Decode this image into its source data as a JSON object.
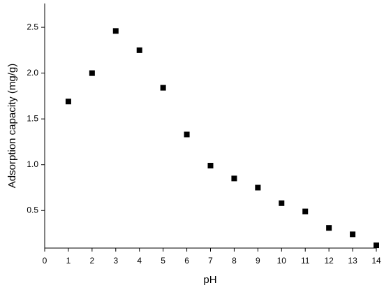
{
  "chart_data": {
    "type": "scatter",
    "x_label": "pH",
    "y_label": "Adsorption capacity (mg/g)",
    "series": [
      {
        "x": [
          1,
          2,
          3,
          4,
          5,
          6,
          7,
          8,
          9,
          10,
          11,
          12,
          13,
          14
        ],
        "values": [
          1.69,
          2.0,
          2.46,
          2.25,
          1.84,
          1.33,
          0.99,
          0.85,
          0.75,
          0.58,
          0.49,
          0.31,
          0.24,
          0.12
        ],
        "color": "#000000"
      }
    ],
    "xlim": [
      0,
      14
    ],
    "xticks": [
      0,
      1,
      2,
      3,
      4,
      5,
      6,
      7,
      8,
      9,
      10,
      11,
      12,
      13,
      14
    ],
    "ylim": [
      0.09,
      2.76
    ],
    "yticks": [
      0.5,
      {
        "value": 1.0,
        "label": "1.0"
      },
      1.5,
      {
        "value": 2.0,
        "label": "2.0"
      },
      2.5
    ],
    "grid": false
  }
}
